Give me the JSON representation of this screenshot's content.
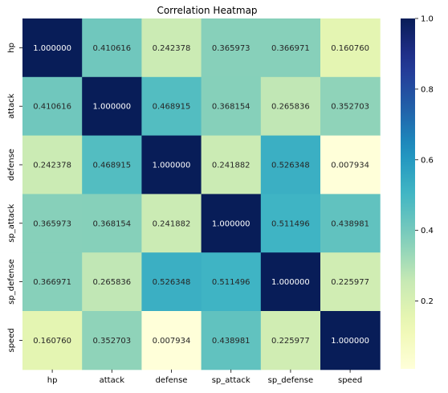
{
  "chart_data": {
    "type": "heatmap",
    "title": "Correlation Heatmap",
    "xlabel": "",
    "ylabel": "",
    "x_categories": [
      "hp",
      "attack",
      "defense",
      "sp_attack",
      "sp_defense",
      "speed"
    ],
    "y_categories": [
      "hp",
      "attack",
      "defense",
      "sp_attack",
      "sp_defense",
      "speed"
    ],
    "values": [
      [
        1.0,
        0.410616,
        0.242378,
        0.365973,
        0.366971,
        0.16076
      ],
      [
        0.410616,
        1.0,
        0.468915,
        0.368154,
        0.265836,
        0.352703
      ],
      [
        0.242378,
        0.468915,
        1.0,
        0.241882,
        0.526348,
        0.007934
      ],
      [
        0.365973,
        0.368154,
        0.241882,
        1.0,
        0.511496,
        0.438981
      ],
      [
        0.366971,
        0.265836,
        0.526348,
        0.511496,
        1.0,
        0.225977
      ],
      [
        0.16076,
        0.352703,
        0.007934,
        0.438981,
        0.225977,
        1.0
      ]
    ],
    "cell_labels": [
      [
        "1.000000",
        "0.410616",
        "0.242378",
        "0.365973",
        "0.366971",
        "0.160760"
      ],
      [
        "0.410616",
        "1.000000",
        "0.468915",
        "0.368154",
        "0.265836",
        "0.352703"
      ],
      [
        "0.242378",
        "0.468915",
        "1.000000",
        "0.241882",
        "0.526348",
        "0.007934"
      ],
      [
        "0.365973",
        "0.368154",
        "0.241882",
        "1.000000",
        "0.511496",
        "0.438981"
      ],
      [
        "0.366971",
        "0.265836",
        "0.526348",
        "0.511496",
        "1.000000",
        "0.225977"
      ],
      [
        "0.160760",
        "0.352703",
        "0.007934",
        "0.438981",
        "0.225977",
        "1.000000"
      ]
    ],
    "colormap": "YlGnBu",
    "vmin": 0.007934,
    "vmax": 1.0,
    "colorbar_ticks": [
      {
        "value": 0.2,
        "label": "0.2"
      },
      {
        "value": 0.4,
        "label": "0.4"
      },
      {
        "value": 0.6,
        "label": "0.6"
      },
      {
        "value": 0.8,
        "label": "0.8"
      },
      {
        "value": 1.0,
        "label": "1.0"
      }
    ],
    "legend": "colorbar-right"
  }
}
